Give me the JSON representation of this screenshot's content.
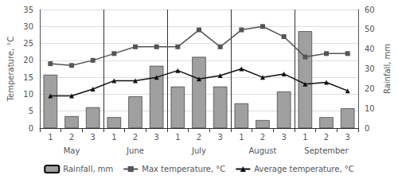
{
  "chart_data": {
    "type": "combo",
    "categories": [
      "1",
      "2",
      "3",
      "1",
      "2",
      "3",
      "1",
      "2",
      "3",
      "1",
      "2",
      "3",
      "1",
      "2",
      "3"
    ],
    "annotations": [
      "May",
      "June",
      "July",
      "August",
      "September"
    ],
    "series": [
      {
        "name": "Rainfall, mm",
        "type": "bar",
        "axis": "y2",
        "color": "#a0a0a0",
        "values": [
          27.0,
          6.0,
          10.5,
          5.5,
          16.0,
          31.5,
          21.0,
          36.0,
          21.0,
          12.5,
          4.0,
          18.5,
          49.0,
          5.5,
          10.0
        ]
      },
      {
        "name": "Max temperature, °C",
        "type": "line",
        "color": "#555555",
        "marker": "square",
        "values": [
          19.0,
          18.5,
          20.0,
          22.0,
          24.0,
          24.0,
          24.0,
          29.0,
          24.0,
          29.0,
          30.0,
          27.0,
          21.0,
          22.0,
          22.0
        ]
      },
      {
        "name": "Average temperature, °C",
        "type": "line",
        "color": "#111111",
        "marker": "triangle",
        "values": [
          9.5,
          9.5,
          11.5,
          14.0,
          14.0,
          15.0,
          17.0,
          14.5,
          15.5,
          17.5,
          15.0,
          16.0,
          13.0,
          13.5,
          11.0
        ]
      }
    ],
    "ylabel": "Temperature, °C",
    "y2label": "Rainfall, mm",
    "ylim": [
      0,
      35
    ],
    "yticks": [
      0,
      5,
      10,
      15,
      20,
      25,
      30,
      35
    ],
    "y2lim": [
      0,
      60
    ],
    "y2ticks": [
      0,
      10,
      20,
      30,
      40,
      50,
      60
    ],
    "grid": true,
    "legend": "bottom"
  }
}
